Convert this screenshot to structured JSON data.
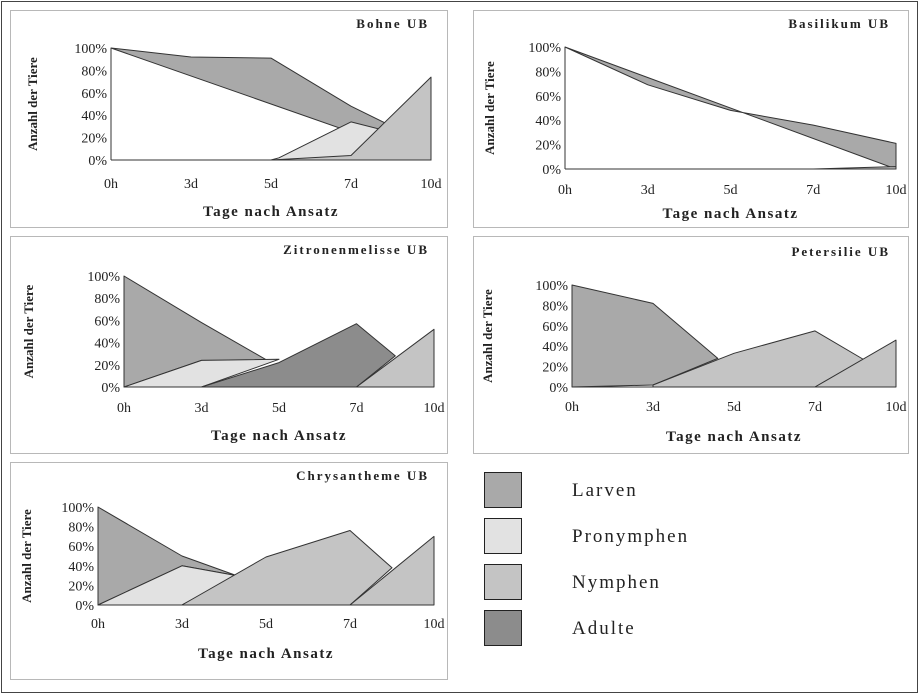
{
  "chart_data": [
    {
      "type": "area",
      "title": "Bohne UB",
      "xlabel": "Tage nach Ansatz",
      "ylabel": "Anzahl der Tiere",
      "categories": [
        "0h",
        "3d",
        "5d",
        "7d",
        "10d"
      ],
      "y_ticks": [
        "0%",
        "20%",
        "40%",
        "60%",
        "80%",
        "100%"
      ],
      "ylim": [
        0,
        100
      ],
      "series": [
        {
          "name": "Larven",
          "points": [
            [
              0,
              100
            ],
            [
              1,
              92
            ],
            [
              2,
              91
            ],
            [
              3,
              48
            ],
            [
              3.6,
              27
            ],
            [
              4,
              0
            ]
          ]
        },
        {
          "name": "Pronymphen",
          "points": [
            [
              2,
              0
            ],
            [
              2.1,
              2
            ],
            [
              3,
              34
            ],
            [
              3.5,
              25
            ],
            [
              3.6,
              27
            ],
            [
              4,
              0
            ]
          ]
        },
        {
          "name": "Nymphen",
          "points": [
            [
              2,
              0
            ],
            [
              3,
              4
            ],
            [
              4,
              74
            ],
            [
              4,
              0
            ]
          ]
        },
        {
          "name": "Adulte",
          "points": []
        }
      ]
    },
    {
      "type": "area",
      "title": "Basilikum UB",
      "xlabel": "Tage nach Ansatz",
      "ylabel": "Anzahl der Tiere",
      "categories": [
        "0h",
        "3d",
        "5d",
        "7d",
        "10d"
      ],
      "y_ticks": [
        "0%",
        "20%",
        "40%",
        "60%",
        "80%",
        "100%"
      ],
      "ylim": [
        0,
        100
      ],
      "series": [
        {
          "name": "Larven",
          "points": [
            [
              0,
              100
            ],
            [
              1,
              69
            ],
            [
              2,
              48
            ],
            [
              3,
              36
            ],
            [
              4,
              21
            ],
            [
              4,
              0
            ]
          ]
        },
        {
          "name": "Pronymphen",
          "points": []
        },
        {
          "name": "Nymphen",
          "points": [
            [
              3,
              0
            ],
            [
              4,
              2
            ],
            [
              4,
              0
            ]
          ]
        },
        {
          "name": "Adulte",
          "points": []
        }
      ]
    },
    {
      "type": "area",
      "title": "Zitronenmelisse UB",
      "xlabel": "Tage nach Ansatz",
      "ylabel": "Anzahl der Tiere",
      "categories": [
        "0h",
        "3d",
        "5d",
        "7d",
        "10d"
      ],
      "y_ticks": [
        "0%",
        "20%",
        "40%",
        "60%",
        "80%",
        "100%"
      ],
      "ylim": [
        0,
        100
      ],
      "series": [
        {
          "name": "Larven",
          "points": [
            [
              0,
              100
            ],
            [
              1,
              58
            ],
            [
              1.85,
              24
            ],
            [
              1,
              24
            ],
            [
              0,
              0
            ]
          ]
        },
        {
          "name": "Pronymphen",
          "points": [
            [
              0,
              0
            ],
            [
              1,
              24
            ],
            [
              2,
              25
            ],
            [
              1,
              0
            ]
          ]
        },
        {
          "name": "Adulte",
          "points": [
            [
              1,
              0
            ],
            [
              2,
              22
            ],
            [
              3,
              57
            ],
            [
              3.5,
              28
            ],
            [
              3,
              0
            ]
          ]
        },
        {
          "name": "Nymphen",
          "points": [
            [
              3,
              0
            ],
            [
              4,
              52
            ],
            [
              4,
              0
            ]
          ]
        }
      ]
    },
    {
      "type": "area",
      "title": "Petersilie UB",
      "xlabel": "Tage nach Ansatz",
      "ylabel": "Anzahl der Tiere",
      "categories": [
        "0h",
        "3d",
        "5d",
        "7d",
        "10d"
      ],
      "y_ticks": [
        "0%",
        "20%",
        "40%",
        "60%",
        "80%",
        "100%"
      ],
      "ylim": [
        0,
        100
      ],
      "series": [
        {
          "name": "Larven",
          "points": [
            [
              0,
              100
            ],
            [
              1,
              82
            ],
            [
              1.8,
              28
            ],
            [
              1,
              2
            ],
            [
              0,
              0
            ]
          ]
        },
        {
          "name": "Nymphen",
          "points": [
            [
              1,
              0
            ],
            [
              1,
              2
            ],
            [
              2,
              33
            ],
            [
              3,
              55
            ],
            [
              3.6,
              27
            ],
            [
              3,
              0
            ]
          ]
        },
        {
          "name": "Nymphen",
          "points": [
            [
              3,
              0
            ],
            [
              4,
              46
            ],
            [
              4,
              0
            ]
          ]
        }
      ]
    },
    {
      "type": "area",
      "title": "Chrysantheme UB",
      "xlabel": "Tage nach Ansatz",
      "ylabel": "Anzahl der Tiere",
      "categories": [
        "0h",
        "3d",
        "5d",
        "7d",
        "10d"
      ],
      "y_ticks": [
        "0%",
        "20%",
        "40%",
        "60%",
        "80%",
        "100%"
      ],
      "ylim": [
        0,
        100
      ],
      "series": [
        {
          "name": "Larven",
          "points": [
            [
              0,
              100
            ],
            [
              1,
              50
            ],
            [
              1.65,
              30
            ],
            [
              1,
              40
            ],
            [
              0,
              0
            ]
          ]
        },
        {
          "name": "Pronymphen",
          "points": [
            [
              0,
              0
            ],
            [
              1,
              40
            ],
            [
              1.65,
              30
            ],
            [
              1,
              0
            ]
          ]
        },
        {
          "name": "Nymphen",
          "points": [
            [
              1,
              0
            ],
            [
              2,
              49
            ],
            [
              3,
              76
            ],
            [
              3.5,
              38
            ],
            [
              3,
              0
            ]
          ]
        },
        {
          "name": "Nymphen",
          "points": [
            [
              3,
              0
            ],
            [
              4,
              70
            ],
            [
              4,
              0
            ]
          ]
        }
      ]
    }
  ],
  "legend": [
    {
      "label": "Larven",
      "pattern": "p-larven"
    },
    {
      "label": "Pronymphen",
      "pattern": "p-pro"
    },
    {
      "label": "Nymphen",
      "pattern": "p-nym"
    },
    {
      "label": "Adulte",
      "pattern": "p-adult"
    }
  ],
  "colors": {
    "Larven": "#a9a9a9",
    "Pronymphen": "#e2e2e2",
    "Nymphen": "#c4c4c4",
    "Adulte": "#8c8c8c",
    "outline": "#333333"
  }
}
